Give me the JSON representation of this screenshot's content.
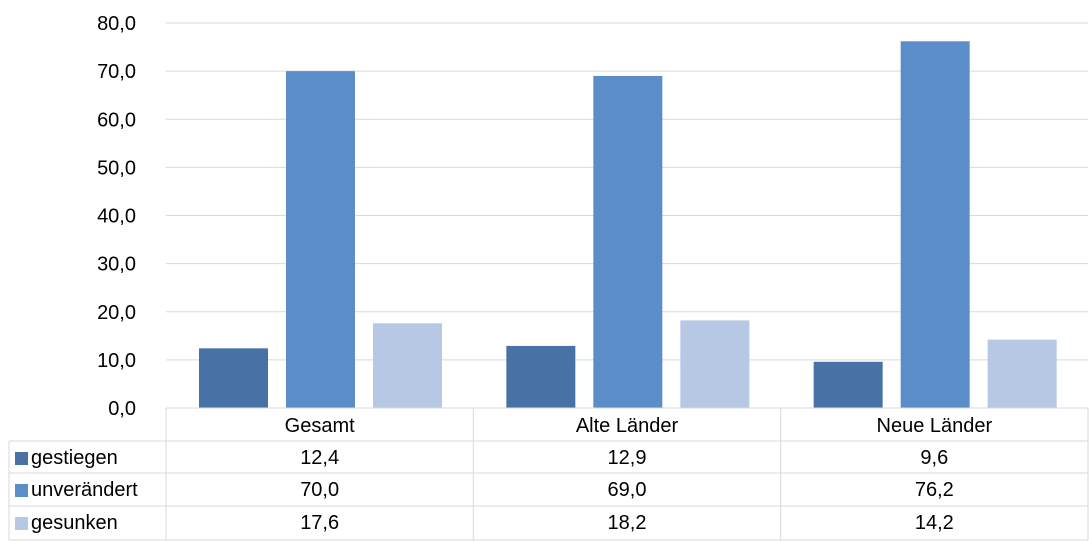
{
  "chart_data": {
    "type": "bar",
    "categories": [
      "Gesamt",
      "Alte Länder",
      "Neue Länder"
    ],
    "series": [
      {
        "name": "gestiegen",
        "values": [
          12.4,
          12.9,
          9.6
        ],
        "display": [
          "12,4",
          "12,9",
          "9,6"
        ],
        "color": "#4872a6"
      },
      {
        "name": "unverändert",
        "values": [
          70.0,
          69.0,
          76.2
        ],
        "display": [
          "70,0",
          "69,0",
          "76,2"
        ],
        "color": "#5b8dc9"
      },
      {
        "name": "gesunken",
        "values": [
          17.6,
          18.2,
          14.2
        ],
        "display": [
          "17,6",
          "18,2",
          "14,2"
        ],
        "color": "#b7c8e4"
      }
    ],
    "yticks": [
      "0,0",
      "10,0",
      "20,0",
      "30,0",
      "40,0",
      "50,0",
      "60,0",
      "70,0",
      "80,0"
    ],
    "ylim": [
      0,
      80
    ],
    "grid": true,
    "legend": "data-table",
    "title": "",
    "xlabel": "",
    "ylabel": ""
  }
}
